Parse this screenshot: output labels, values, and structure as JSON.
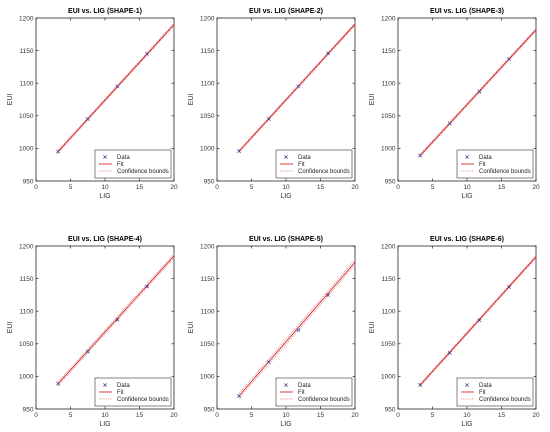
{
  "legend_labels": {
    "data": "Data",
    "fit": "Fit",
    "bounds": "Confidence bounds"
  },
  "colors": {
    "fit": "#d62728",
    "bounds": "#e07a7a",
    "data": "#3b3b8c",
    "axis": "#262626"
  },
  "chart_data": [
    {
      "type": "scatter",
      "title": "EUI vs. LIG (SHAPE-1)",
      "xlabel": "LIG",
      "ylabel": "EUI",
      "xlim": [
        0,
        20
      ],
      "ylim": [
        950,
        1200
      ],
      "xticks": [
        0,
        5,
        10,
        15,
        20
      ],
      "yticks": [
        950,
        1000,
        1050,
        1100,
        1150,
        1200
      ],
      "x": [
        3.2,
        7.5,
        11.8,
        16.1,
        20.4
      ],
      "y": [
        995,
        1045,
        1095,
        1145,
        1195
      ],
      "fit": {
        "slope": 11.6,
        "intercept": 958
      },
      "bounds_halfwidth": 2,
      "legend": "bottom-right"
    },
    {
      "type": "scatter",
      "title": "EUI vs. LIG (SHAPE-2)",
      "xlabel": "LIG",
      "ylabel": "EUI",
      "xlim": [
        0,
        20
      ],
      "ylim": [
        950,
        1200
      ],
      "xticks": [
        0,
        5,
        10,
        15,
        20
      ],
      "yticks": [
        950,
        1000,
        1050,
        1100,
        1150,
        1200
      ],
      "x": [
        3.2,
        7.5,
        11.8,
        16.1,
        20.4
      ],
      "y": [
        996,
        1045,
        1095,
        1146,
        1196
      ],
      "fit": {
        "slope": 11.6,
        "intercept": 958.5
      },
      "bounds_halfwidth": 2,
      "legend": "bottom-right"
    },
    {
      "type": "scatter",
      "title": "EUI vs. LIG (SHAPE-3)",
      "xlabel": "LIG",
      "ylabel": "EUI",
      "xlim": [
        0,
        20
      ],
      "ylim": [
        950,
        1200
      ],
      "xticks": [
        0,
        5,
        10,
        15,
        20
      ],
      "yticks": [
        950,
        1000,
        1050,
        1100,
        1150,
        1200
      ],
      "x": [
        3.2,
        7.5,
        11.8,
        16.1,
        20.4
      ],
      "y": [
        989,
        1038,
        1087,
        1137,
        1186
      ],
      "fit": {
        "slope": 11.48,
        "intercept": 952.3
      },
      "bounds_halfwidth": 2,
      "legend": "bottom-right"
    },
    {
      "type": "scatter",
      "title": "EUI vs. LIG (SHAPE-4)",
      "xlabel": "LIG",
      "ylabel": "EUI",
      "xlim": [
        0,
        20
      ],
      "ylim": [
        950,
        1200
      ],
      "xticks": [
        0,
        5,
        10,
        15,
        20
      ],
      "yticks": [
        950,
        1000,
        1050,
        1100,
        1150,
        1200
      ],
      "x": [
        3.2,
        7.5,
        11.8,
        16.1,
        20.4
      ],
      "y": [
        989,
        1038,
        1087,
        1138,
        1190
      ],
      "fit": {
        "slope": 11.66,
        "intercept": 951.5
      },
      "bounds_halfwidth": 3,
      "legend": "bottom-right"
    },
    {
      "type": "scatter",
      "title": "EUI vs. LIG (SHAPE-5)",
      "xlabel": "LIG",
      "ylabel": "EUI",
      "xlim": [
        0,
        20
      ],
      "ylim": [
        950,
        1200
      ],
      "xticks": [
        0,
        5,
        10,
        15,
        20
      ],
      "yticks": [
        950,
        1000,
        1050,
        1100,
        1150,
        1200
      ],
      "x": [
        3.2,
        7.5,
        11.8,
        16.1,
        20.4
      ],
      "y": [
        970,
        1022,
        1071,
        1125,
        1180
      ],
      "fit": {
        "slope": 12.2,
        "intercept": 931
      },
      "bounds_halfwidth": 4,
      "legend": "bottom-right"
    },
    {
      "type": "scatter",
      "title": "EUI vs. LIG (SHAPE-6)",
      "xlabel": "LIG",
      "ylabel": "EUI",
      "xlim": [
        0,
        20
      ],
      "ylim": [
        950,
        1200
      ],
      "xticks": [
        0,
        5,
        10,
        15,
        20
      ],
      "yticks": [
        950,
        1000,
        1050,
        1100,
        1150,
        1200
      ],
      "x": [
        3.2,
        7.5,
        11.8,
        16.1,
        20.4
      ],
      "y": [
        987,
        1036,
        1086,
        1137,
        1189
      ],
      "fit": {
        "slope": 11.72,
        "intercept": 949
      },
      "bounds_halfwidth": 2,
      "legend": "bottom-right"
    }
  ]
}
